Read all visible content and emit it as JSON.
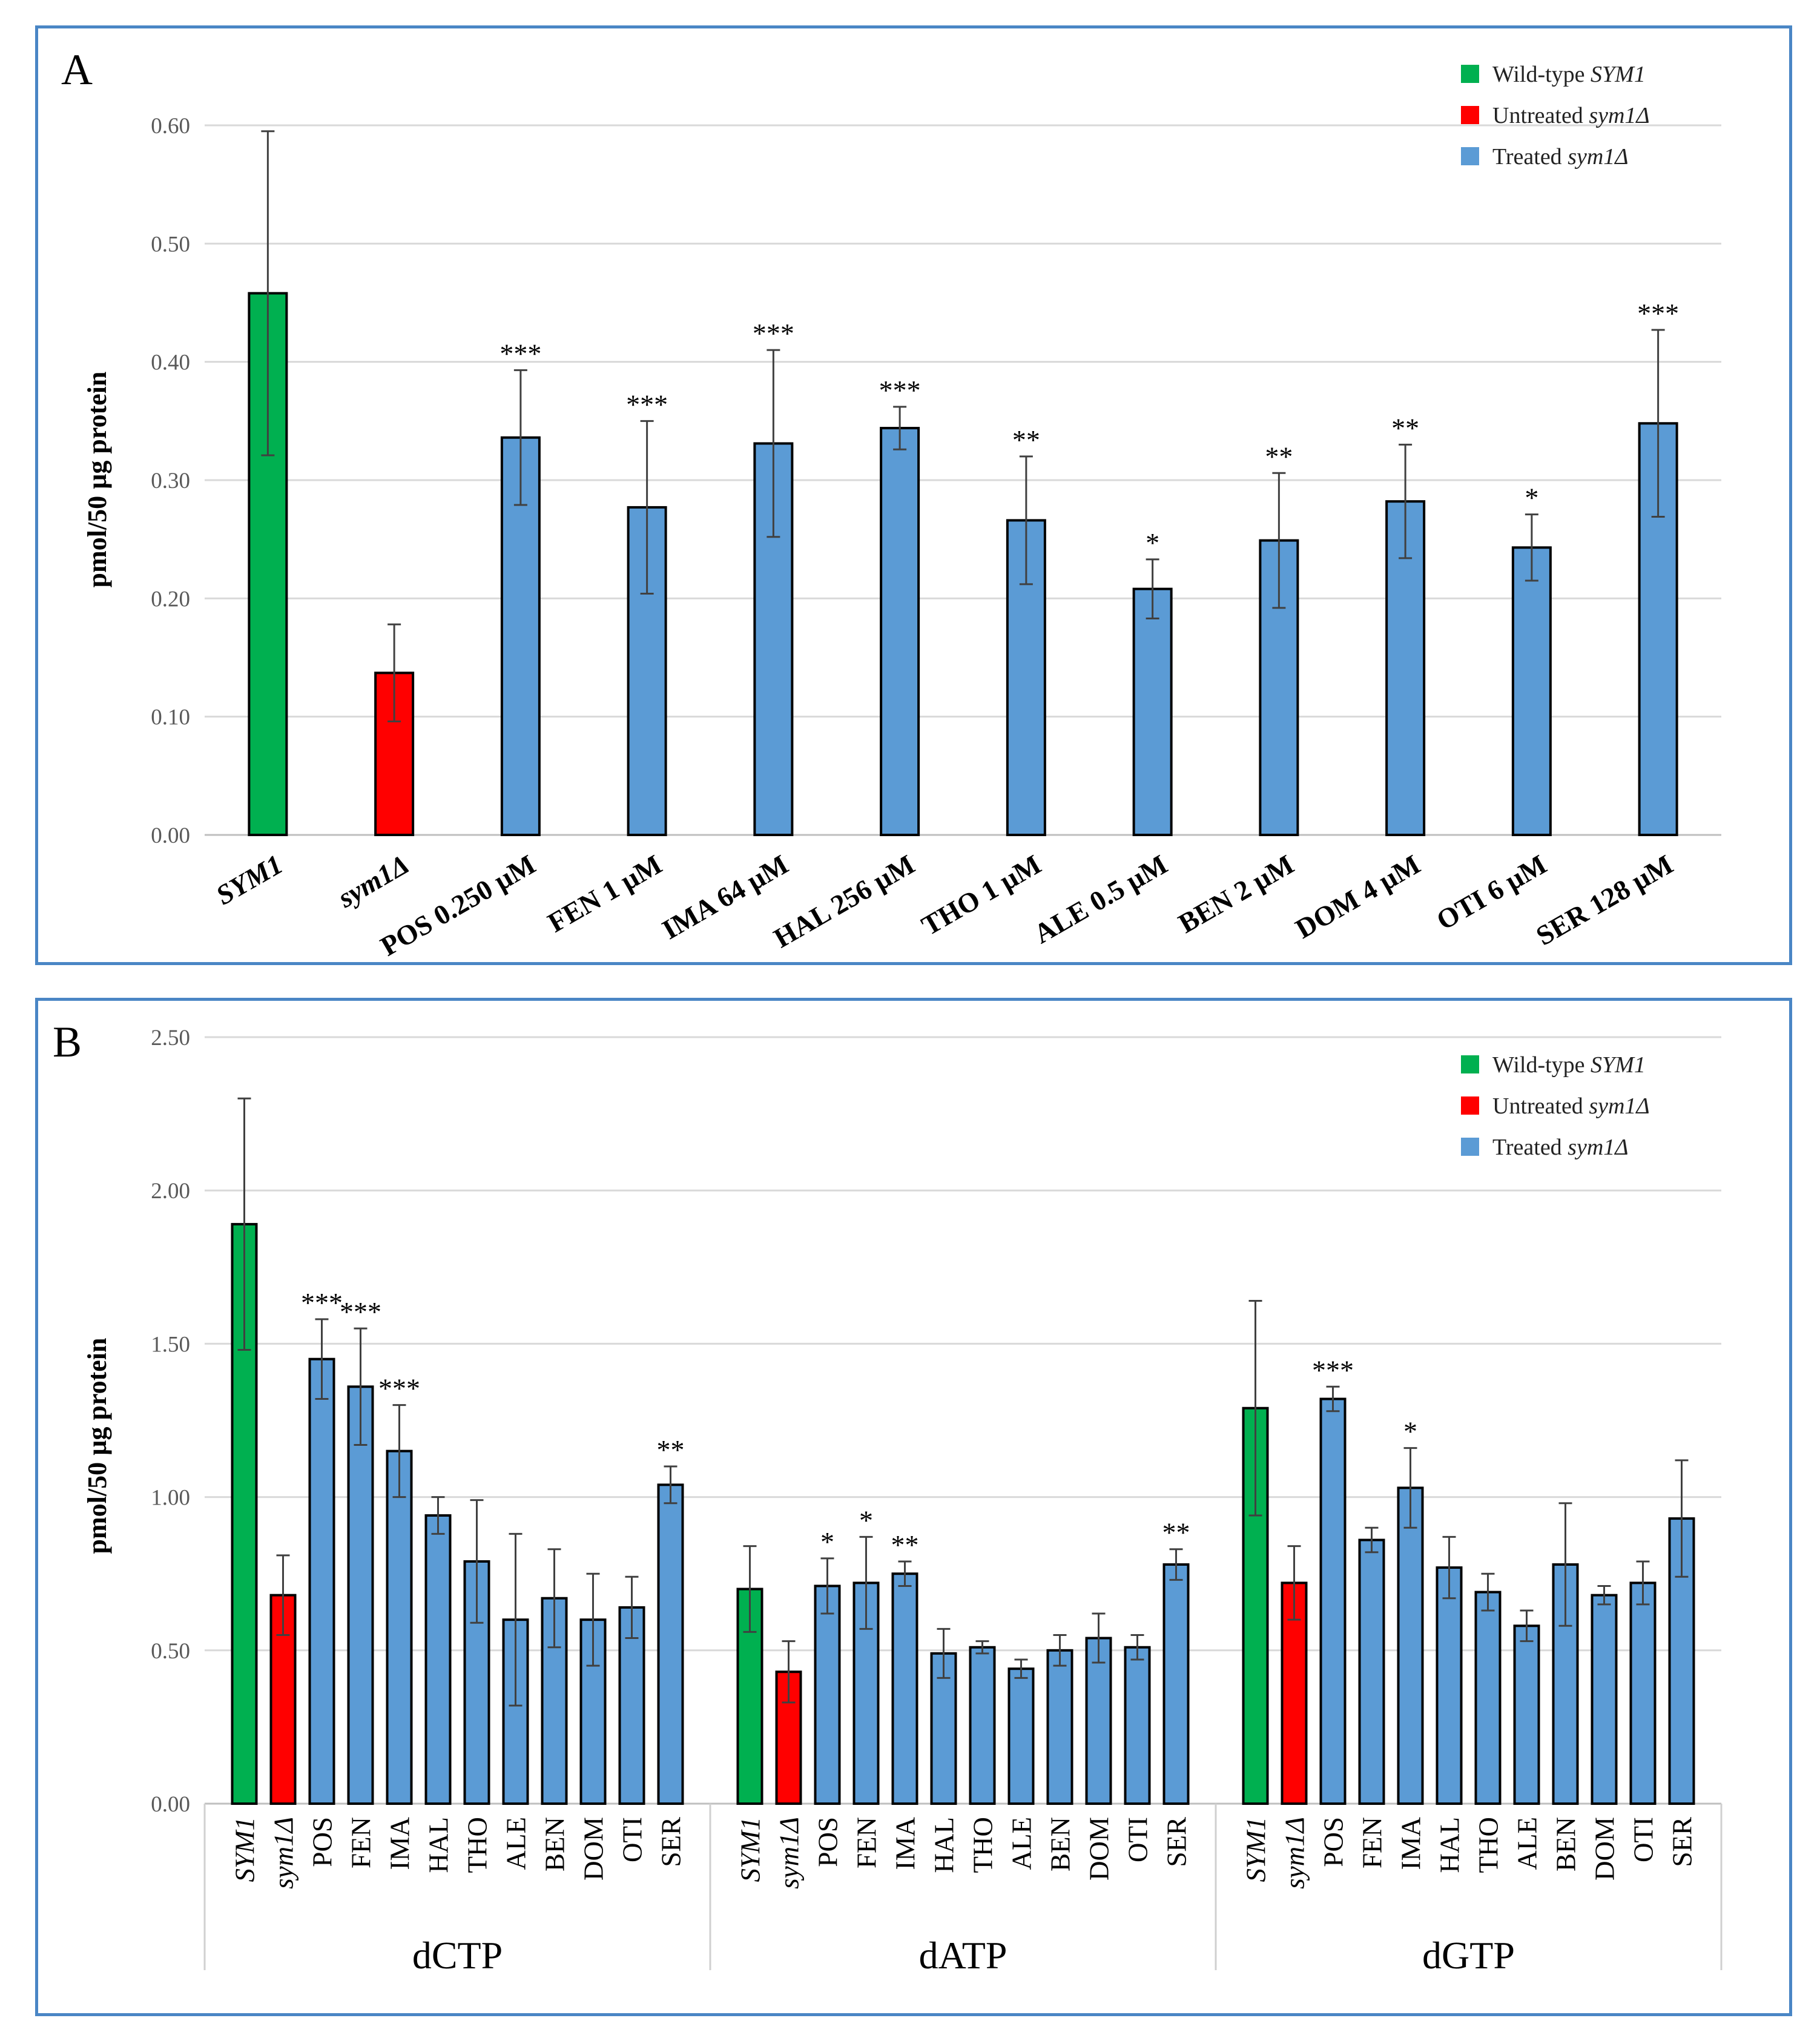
{
  "colors": {
    "wild_type": "#00b050",
    "untreated": "#ff0000",
    "treated": "#5b9bd5",
    "grid": "#d9d9d9",
    "frame": "#4a86c5"
  },
  "legend": [
    {
      "text": "Wild-type ",
      "italic": "SYM1",
      "color_key": "wild_type"
    },
    {
      "text": "Untreated ",
      "italic": "sym1Δ",
      "color_key": "untreated"
    },
    {
      "text": "Treated ",
      "italic": "sym1Δ",
      "color_key": "treated"
    }
  ],
  "chart_data": [
    {
      "panel": "A",
      "type": "bar",
      "ylabel": "pmol/50 µg protein",
      "ylim": [
        0,
        0.6
      ],
      "yticks": [
        "0.00",
        "0.10",
        "0.20",
        "0.30",
        "0.40",
        "0.50",
        "0.60"
      ],
      "grid": true,
      "legend_position": "top-right",
      "categories": [
        "SYM1",
        "sym1Δ",
        "POS 0.250 µM",
        "FEN 1 µM",
        "IMA 64 µM",
        "HAL 256 µM",
        "THO 1 µM",
        "ALE 0.5 µM",
        "BEN 2 µM",
        "DOM 4 µM",
        "OTI 6 µM",
        "SER 128 µM"
      ],
      "italic_categories": [
        0,
        1
      ],
      "values": [
        0.458,
        0.137,
        0.336,
        0.277,
        0.331,
        0.344,
        0.266,
        0.208,
        0.249,
        0.282,
        0.243,
        0.348
      ],
      "errors": [
        0.137,
        0.041,
        0.057,
        0.073,
        0.079,
        0.018,
        0.054,
        0.025,
        0.057,
        0.048,
        0.028,
        0.079
      ],
      "significance": [
        "",
        "",
        "***",
        "***",
        "***",
        "***",
        "**",
        "*",
        "**",
        "**",
        "*",
        "***"
      ],
      "color_keys": [
        "wild_type",
        "untreated",
        "treated",
        "treated",
        "treated",
        "treated",
        "treated",
        "treated",
        "treated",
        "treated",
        "treated",
        "treated"
      ]
    },
    {
      "panel": "B",
      "type": "bar",
      "ylabel": "pmol/50 µg protein",
      "ylim": [
        0,
        2.5
      ],
      "yticks": [
        "0.00",
        "0.50",
        "1.00",
        "1.50",
        "2.00",
        "2.50"
      ],
      "grid": true,
      "legend_position": "top-right",
      "categories": [
        "SYM1",
        "sym1Δ",
        "POS",
        "FEN",
        "IMA",
        "HAL",
        "THO",
        "ALE",
        "BEN",
        "DOM",
        "OTI",
        "SER"
      ],
      "italic_categories": [
        0,
        1
      ],
      "color_keys": [
        "wild_type",
        "untreated",
        "treated",
        "treated",
        "treated",
        "treated",
        "treated",
        "treated",
        "treated",
        "treated",
        "treated",
        "treated"
      ],
      "groups": [
        {
          "name": "dCTP",
          "values": [
            1.89,
            0.68,
            1.45,
            1.36,
            1.15,
            0.94,
            0.79,
            0.6,
            0.67,
            0.6,
            0.64,
            1.04
          ],
          "errors": [
            0.41,
            0.13,
            0.13,
            0.19,
            0.15,
            0.06,
            0.2,
            0.28,
            0.16,
            0.15,
            0.1,
            0.06
          ],
          "significance": [
            "",
            "",
            "***",
            "***",
            "***",
            "",
            "",
            "",
            "",
            "",
            "",
            "**"
          ]
        },
        {
          "name": "dATP",
          "values": [
            0.7,
            0.43,
            0.71,
            0.72,
            0.75,
            0.49,
            0.51,
            0.44,
            0.5,
            0.54,
            0.51,
            0.78
          ],
          "errors": [
            0.14,
            0.1,
            0.09,
            0.15,
            0.04,
            0.08,
            0.02,
            0.03,
            0.05,
            0.08,
            0.04,
            0.05
          ],
          "significance": [
            "",
            "",
            "*",
            "*",
            "**",
            "",
            "",
            "",
            "",
            "",
            "",
            "**"
          ]
        },
        {
          "name": "dGTP",
          "values": [
            1.29,
            0.72,
            1.32,
            0.86,
            1.03,
            0.77,
            0.69,
            0.58,
            0.78,
            0.68,
            0.72,
            0.93
          ],
          "errors": [
            0.35,
            0.12,
            0.04,
            0.04,
            0.13,
            0.1,
            0.06,
            0.05,
            0.2,
            0.03,
            0.07,
            0.19
          ],
          "significance": [
            "",
            "",
            "***",
            "",
            "*",
            "",
            "",
            "",
            "",
            "",
            "",
            ""
          ]
        }
      ]
    }
  ]
}
